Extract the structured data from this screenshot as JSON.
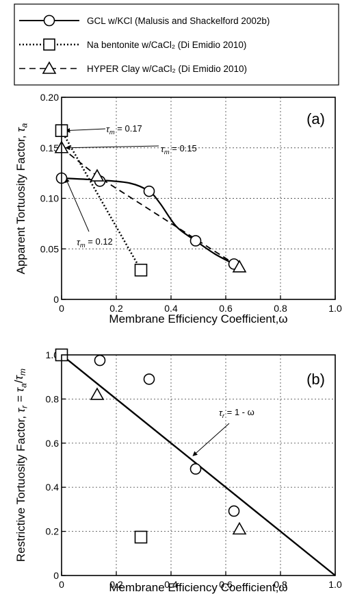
{
  "legend": {
    "items": [
      {
        "name": "GCL w/KCl (Malusis and Shackelford 2002b)",
        "marker": "circle",
        "line": "solid"
      },
      {
        "name": "Na bentonite w/CaCl₂ (Di Emidio 2010)",
        "marker": "square",
        "line": "dotted"
      },
      {
        "name": "HYPER Clay w/CaCl₂ (Di Emidio 2010)",
        "marker": "triangle",
        "line": "dashed"
      }
    ]
  },
  "chart_data": [
    {
      "type": "line",
      "panel_label": "(a)",
      "xlabel": "Membrane Efficiency Coefficient,ω",
      "ylabel": "Apparent Tortuosity Factor, τa",
      "xlim": [
        0,
        1.0
      ],
      "ylim": [
        0,
        0.2
      ],
      "xticks": [
        "0",
        "0.2",
        "0.4",
        "0.6",
        "0.8",
        "1.0"
      ],
      "yticks": [
        "0",
        "0.05",
        "0.10",
        "0.15",
        "0.20"
      ],
      "grid": true,
      "series": [
        {
          "name": "GCL w/KCl (Malusis and Shackelford 2002b)",
          "marker": "circle",
          "line": "solid",
          "x": [
            0.0,
            0.14,
            0.32,
            0.49,
            0.63
          ],
          "y": [
            0.12,
            0.117,
            0.107,
            0.058,
            0.035
          ],
          "curve_x": [
            0.0,
            0.14,
            0.25,
            0.32,
            0.36,
            0.42,
            0.49,
            0.56,
            0.63
          ],
          "curve_y": [
            0.12,
            0.118,
            0.115,
            0.107,
            0.095,
            0.072,
            0.058,
            0.045,
            0.035
          ]
        },
        {
          "name": "Na bentonite w/CaCl₂ (Di Emidio 2010)",
          "marker": "square",
          "line": "dotted",
          "x": [
            0.0,
            0.29
          ],
          "y": [
            0.167,
            0.029
          ]
        },
        {
          "name": "HYPER Clay w/CaCl₂ (Di Emidio 2010)",
          "marker": "triangle",
          "line": "dashed",
          "x": [
            0.0,
            0.13,
            0.65
          ],
          "y": [
            0.15,
            0.122,
            0.032
          ],
          "curve_x": [
            0.0,
            0.13,
            0.65
          ],
          "curve_y": [
            0.15,
            0.122,
            0.032
          ]
        }
      ],
      "annotations": [
        {
          "label": "τm = 0.17",
          "x": 0.0,
          "y": 0.167
        },
        {
          "label": "τm = 0.15",
          "x": 0.0,
          "y": 0.15
        },
        {
          "label": "τm = 0.12",
          "x": 0.0,
          "y": 0.12
        }
      ]
    },
    {
      "type": "scatter",
      "panel_label": "(b)",
      "xlabel": "Membrane Efficiency Coefficient,ω",
      "ylabel": "Restrictive Tortuosity Factor, τr = τa/τm",
      "xlim": [
        0,
        1.0
      ],
      "ylim": [
        0,
        1.0
      ],
      "xticks": [
        "0",
        "0.2",
        "0.4",
        "0.6",
        "0.8",
        "1.0"
      ],
      "yticks": [
        "0",
        "0.2",
        "0.4",
        "0.6",
        "0.8",
        "1.0"
      ],
      "grid": true,
      "series": [
        {
          "name": "GCL w/KCl (Malusis and Shackelford 2002b)",
          "marker": "circle",
          "x": [
            0.14,
            0.32,
            0.49,
            0.63
          ],
          "y": [
            0.975,
            0.89,
            0.483,
            0.292
          ]
        },
        {
          "name": "Na bentonite w/CaCl₂ (Di Emidio 2010)",
          "marker": "square",
          "x": [
            0.0,
            0.29
          ],
          "y": [
            1.0,
            0.174
          ]
        },
        {
          "name": "HYPER Clay w/CaCl₂ (Di Emidio 2010)",
          "marker": "triangle",
          "x": [
            0.13,
            0.65
          ],
          "y": [
            0.82,
            0.21
          ]
        }
      ],
      "reference_line": {
        "label": "τr = 1 - ω",
        "x": [
          0,
          1.0
        ],
        "y": [
          1.0,
          0
        ]
      }
    }
  ]
}
